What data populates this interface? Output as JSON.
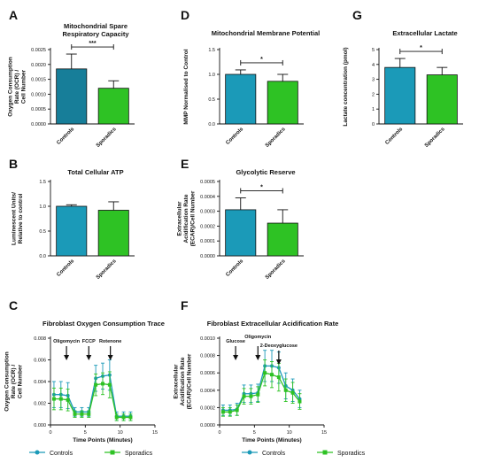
{
  "colors": {
    "controls": "#1b9ab8",
    "sporadics": "#2ec224",
    "controls_dark": "#177e99"
  },
  "legend": {
    "controls": "Controls",
    "sporadics": "Sporadics"
  },
  "chart_data": [
    {
      "panel": "A",
      "type": "bar",
      "title": [
        "Mitochondrial Spare",
        "Respiratory Capacity"
      ],
      "ylabel": [
        "Oxygen Consumption",
        "Rate (OCR) /",
        "Cell Number"
      ],
      "categories": [
        "Controls",
        "Sporadics"
      ],
      "values": [
        0.00185,
        0.0012
      ],
      "errors": [
        0.0005,
        0.00025
      ],
      "ylim": [
        0,
        0.0025
      ],
      "yticks": [
        "0.0000",
        "0.0005",
        "0.0010",
        "0.0015",
        "0.0020",
        "0.0025"
      ],
      "significance": "***"
    },
    {
      "panel": "D",
      "type": "bar",
      "title": [
        "Mitochondrial Membrane Potential"
      ],
      "ylabel": [
        "MMP Normalised to Control"
      ],
      "categories": [
        "Controls",
        "Sporadics"
      ],
      "values": [
        1.0,
        0.86
      ],
      "errors": [
        0.09,
        0.14
      ],
      "ylim": [
        0,
        1.5
      ],
      "yticks": [
        "0.0",
        "0.5",
        "1.0",
        "1.5"
      ],
      "significance": "*"
    },
    {
      "panel": "G",
      "type": "bar",
      "title": [
        "Extracellular Lactate"
      ],
      "ylabel": [
        "Lactate concentration (pmol)"
      ],
      "categories": [
        "Controls",
        "Sporadics"
      ],
      "values": [
        3.8,
        3.3
      ],
      "errors": [
        0.6,
        0.5
      ],
      "ylim": [
        0,
        5
      ],
      "yticks": [
        "0",
        "1",
        "2",
        "3",
        "4",
        "5"
      ],
      "significance": "*"
    },
    {
      "panel": "B",
      "type": "bar",
      "title": [
        "Total Cellular ATP"
      ],
      "ylabel": [
        "Luminescent Units/",
        "Relative to control"
      ],
      "categories": [
        "Controls",
        "Sporadics"
      ],
      "values": [
        1.0,
        0.92
      ],
      "errors": [
        0.03,
        0.17
      ],
      "ylim": [
        0,
        1.5
      ],
      "yticks": [
        "0.0",
        "0.5",
        "1.0",
        "1.5"
      ],
      "significance": ""
    },
    {
      "panel": "E",
      "type": "bar",
      "title": [
        "Glycolytic Reserve"
      ],
      "ylabel": [
        "Extracellular",
        "Acidification Rate",
        "(ECAR)/Cell Number"
      ],
      "categories": [
        "Controls",
        "Sporadics"
      ],
      "values": [
        0.00031,
        0.00022
      ],
      "errors": [
        8e-05,
        9e-05
      ],
      "ylim": [
        0,
        0.0005
      ],
      "yticks": [
        "0.0000",
        "0.0001",
        "0.0002",
        "0.0003",
        "0.0004",
        "0.0005"
      ],
      "significance": "*"
    },
    {
      "panel": "C",
      "type": "line",
      "title": [
        "Fibroblast Oxygen Consumption Trace"
      ],
      "ylabel": [
        "Oxygen Consumption",
        "Rate (OCR) /",
        "Cell Number"
      ],
      "xlabel": "Time Points (Minutes)",
      "xlim": [
        0,
        15
      ],
      "xticks": [
        "0",
        "5",
        "10",
        "15"
      ],
      "ylim": [
        0,
        0.008
      ],
      "yticks": [
        "0.000",
        "0.002",
        "0.004",
        "0.006",
        "0.008"
      ],
      "x": [
        0,
        1,
        2,
        3,
        4,
        5,
        6,
        7,
        8,
        9,
        10,
        11
      ],
      "series": [
        {
          "name": "Controls",
          "values": [
            0.0028,
            0.0028,
            0.0027,
            0.0012,
            0.0012,
            0.0012,
            0.0043,
            0.0045,
            0.0046,
            0.0008,
            0.0008,
            0.0008
          ],
          "errors": [
            0.0012,
            0.0012,
            0.0012,
            0.0004,
            0.0004,
            0.0004,
            0.0012,
            0.0012,
            0.0014,
            0.0004,
            0.0004,
            0.0004
          ]
        },
        {
          "name": "Sporadics",
          "values": [
            0.0024,
            0.0024,
            0.0023,
            0.001,
            0.001,
            0.001,
            0.0037,
            0.0038,
            0.0037,
            0.0007,
            0.0007,
            0.0007
          ],
          "errors": [
            0.001,
            0.001,
            0.001,
            0.0003,
            0.0003,
            0.0003,
            0.001,
            0.001,
            0.0012,
            0.0003,
            0.0003,
            0.0003
          ]
        }
      ],
      "annotations": [
        {
          "label": "Oligomycin",
          "x": 2.3
        },
        {
          "label": "FCCP",
          "x": 5.5
        },
        {
          "label": "Rotenone",
          "x": 8.6
        }
      ]
    },
    {
      "panel": "F",
      "type": "line",
      "title": [
        "Fibroblast Extracellular Acidification Rate"
      ],
      "ylabel": [
        "Extracellular",
        "Acidification Rate",
        "(ECAR)/Cell Number"
      ],
      "xlabel": "Time Points (Minutes)",
      "xlim": [
        0,
        15
      ],
      "xticks": [
        "0",
        "5",
        "10",
        "15"
      ],
      "ylim": [
        0,
        0.001
      ],
      "yticks": [
        "0.0000",
        "0.0002",
        "0.0004",
        "0.0006",
        "0.0008",
        "0.0010"
      ],
      "x": [
        0,
        1,
        2,
        3,
        4,
        5,
        6,
        7,
        8,
        9,
        10,
        11
      ],
      "series": [
        {
          "name": "Controls",
          "values": [
            0.00017,
            0.00017,
            0.00018,
            0.00036,
            0.00036,
            0.00037,
            0.00068,
            0.00068,
            0.00066,
            0.00045,
            0.0004,
            0.0003
          ],
          "errors": [
            6e-05,
            6e-05,
            7e-05,
            0.0001,
            0.0001,
            0.0001,
            0.00018,
            0.00018,
            0.00018,
            0.00015,
            0.00013,
            0.0001
          ]
        },
        {
          "name": "Sporadics",
          "values": [
            0.00015,
            0.00015,
            0.00017,
            0.00033,
            0.00033,
            0.00035,
            0.0006,
            0.00058,
            0.00055,
            0.0004,
            0.00037,
            0.00027
          ],
          "errors": [
            5e-05,
            5e-05,
            6e-05,
            9e-05,
            9e-05,
            9e-05,
            0.00015,
            0.00015,
            0.00016,
            0.00013,
            0.00012,
            9e-05
          ]
        }
      ],
      "annotations": [
        {
          "label": "Glucose",
          "x": 2.3
        },
        {
          "label": "Oligomycin",
          "x": 5.5
        },
        {
          "label": "2-Deoxyglucose",
          "x": 8.5
        }
      ]
    }
  ]
}
